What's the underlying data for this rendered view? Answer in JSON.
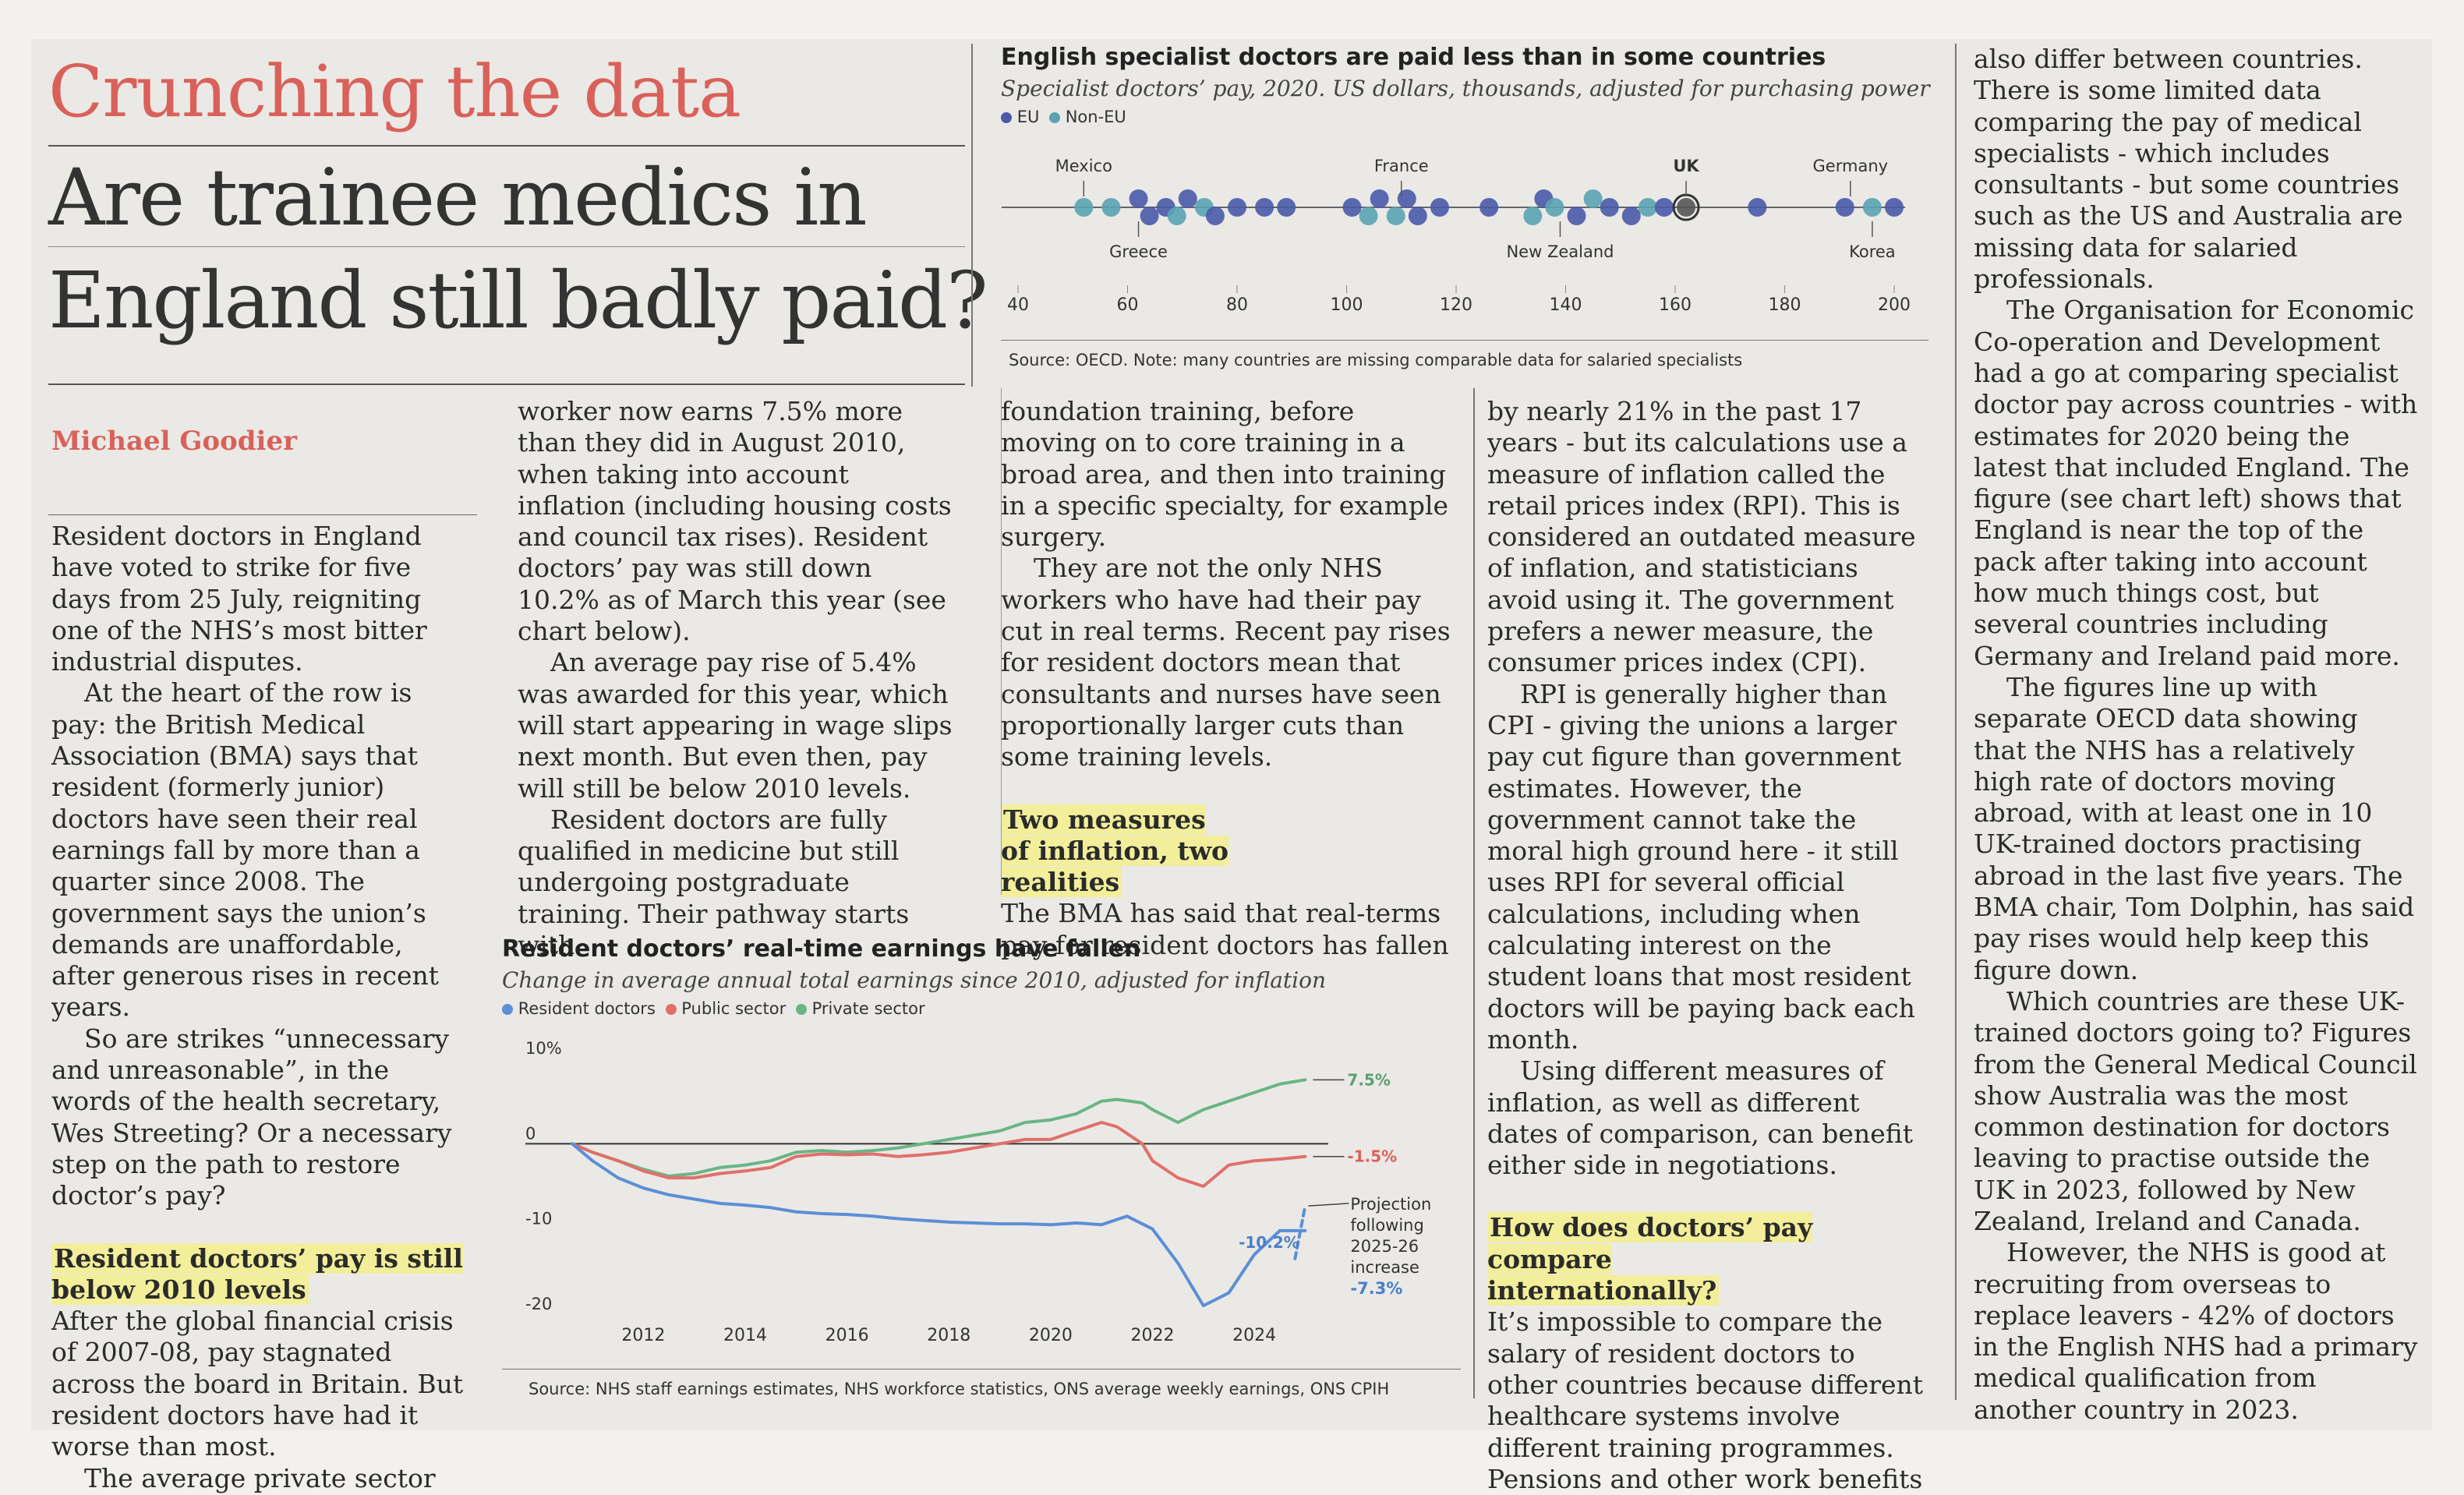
{
  "kicker": "Crunching the data",
  "headline_line1": "Are trainee medics in",
  "headline_line2": "England still badly paid?",
  "byline": "Michael Goodier",
  "columns": {
    "col1": {
      "p1": "Resident doctors in England have voted to strike for five days from 25 July, reigniting one of the NHS’s most bitter industrial disputes.",
      "p2": "At the heart of the row is pay: the British Medical Association (BMA) says that resident (formerly junior) doctors have seen their real earnings fall by more than a quarter since 2008. The government says the union’s demands are unaffordable, after generous rises in recent years.",
      "p3": "So are strikes “unnecessary and unreasonable”, in the words of the health secretary, Wes Streeting? Or a necessary step on the path to restore doctor’s pay?",
      "subhead": "Resident doctors’ pay is still below 2010 levels",
      "p4": "After the global financial crisis of 2007-08, pay stagnated across the board in Britain. But resident doctors have had it worse than most.",
      "p5": "The average private sector"
    },
    "col2": {
      "p1": "worker now earns 7.5% more than they did in August 2010, when taking into account inflation (including housing costs and council tax rises). Resident doctors’ pay was still down 10.2% as of March this year (see chart below).",
      "p2": "An average pay rise of 5.4% was awarded for this year, which will start appearing in wage slips next month. But even then, pay will still be below 2010 levels.",
      "p3": "Resident doctors are fully qualified in medicine but still undergoing postgraduate training. Their pathway starts with"
    },
    "col3": {
      "p1": "foundation training, before moving on to core training in a broad area, and then into training in a specific specialty, for example surgery.",
      "p2": "They are not the only NHS workers who have had their pay cut in real terms. Recent pay rises for resident doctors mean that consultants and nurses have seen proportionally larger cuts than some training levels.",
      "subhead": "Two measures of inflation, two realities",
      "p3": "The BMA has said that real-terms pay for resident doctors has fallen"
    },
    "col4": {
      "p1": "by nearly 21% in the past 17 years - but its calculations use a measure of inflation called the retail prices index (RPI). This is considered an outdated measure of inflation, and statisticians avoid using it. The government prefers a newer measure, the consumer prices index (CPI).",
      "p2": "RPI is generally higher than CPI - giving the unions a larger pay cut figure than government estimates. However, the government cannot take the moral high ground here - it still uses RPI for several official calculations, including when calculating interest on the student loans that most resident doctors will be paying back each month.",
      "p3": "Using different measures of inflation, as well as different dates of comparison, can benefit either side in negotiations.",
      "subhead": "How does doctors’ pay compare internationally?",
      "p4": "It’s impossible to compare the salary of resident doctors to other countries because different healthcare systems involve different training programmes. Pensions and other work benefits"
    },
    "col5": {
      "p1": "also differ between countries. There is some limited data comparing the pay of medical specialists - which includes consultants - but some countries such as the US and Australia are missing data for salaried professionals.",
      "p2": "The Organisation for Economic Co-operation and Development had a go at comparing specialist doctor pay across countries - with estimates for 2020 being the latest that included England. The figure (see chart left) shows that England is near the top of the pack after taking into account how much things cost, but several countries including Germany and Ireland paid more.",
      "p3": "The figures line up with separate OECD data showing that the NHS has a relatively high rate of doctors moving abroad, with at least one in 10 UK-trained doctors practising abroad in the last five years. The BMA chair, Tom Dolphin, has said pay rises would help keep this figure down.",
      "p4": "Which countries are these UK-trained doctors going to? Figures from the General Medical Council show Australia was the most common destination for doctors leaving to practise outside the UK in 2023, followed by New Zealand, Ireland and Canada.",
      "p5": "However, the NHS is good at recruiting from overseas to replace leavers - 42% of doctors in the English NHS had a primary medical qualification from another country in 2023."
    }
  },
  "chart_data": [
    {
      "type": "scatter",
      "title": "English specialist doctors are paid less than in some countries",
      "subtitle": "Specialist doctors’ pay, 2020. US dollars, thousands, adjusted for purchasing power",
      "legend": [
        "EU",
        "Non-EU"
      ],
      "colors": {
        "EU": "#4a5aa8",
        "Non-EU": "#5aa3b3"
      },
      "xlim": [
        40,
        200
      ],
      "xticks": [
        "40",
        "60",
        "80",
        "100",
        "120",
        "140",
        "160",
        "180",
        "200"
      ],
      "annotations": [
        {
          "label": "Mexico",
          "x": 52,
          "pos": "above"
        },
        {
          "label": "Greece",
          "x": 62,
          "pos": "below"
        },
        {
          "label": "France",
          "x": 110,
          "pos": "above"
        },
        {
          "label": "New Zealand",
          "x": 139,
          "pos": "below"
        },
        {
          "label": "UK",
          "x": 162,
          "pos": "above"
        },
        {
          "label": "Germany",
          "x": 192,
          "pos": "above"
        },
        {
          "label": "Korea",
          "x": 196,
          "pos": "below"
        }
      ],
      "points": [
        {
          "x": 52,
          "g": "Non-EU",
          "r": 0
        },
        {
          "x": 57,
          "g": "Non-EU",
          "r": 0
        },
        {
          "x": 62,
          "g": "EU",
          "r": 1
        },
        {
          "x": 64,
          "g": "EU",
          "r": -1
        },
        {
          "x": 67,
          "g": "EU",
          "r": 0
        },
        {
          "x": 69,
          "g": "Non-EU",
          "r": -1
        },
        {
          "x": 71,
          "g": "EU",
          "r": 1
        },
        {
          "x": 74,
          "g": "Non-EU",
          "r": 0
        },
        {
          "x": 76,
          "g": "EU",
          "r": -1
        },
        {
          "x": 80,
          "g": "EU",
          "r": 0
        },
        {
          "x": 85,
          "g": "EU",
          "r": 0
        },
        {
          "x": 89,
          "g": "EU",
          "r": 0
        },
        {
          "x": 101,
          "g": "EU",
          "r": 0
        },
        {
          "x": 104,
          "g": "Non-EU",
          "r": -1
        },
        {
          "x": 106,
          "g": "EU",
          "r": 1
        },
        {
          "x": 109,
          "g": "Non-EU",
          "r": -1
        },
        {
          "x": 111,
          "g": "EU",
          "r": 1
        },
        {
          "x": 113,
          "g": "EU",
          "r": -1
        },
        {
          "x": 117,
          "g": "EU",
          "r": 0
        },
        {
          "x": 126,
          "g": "EU",
          "r": 0
        },
        {
          "x": 134,
          "g": "Non-EU",
          "r": -1
        },
        {
          "x": 136,
          "g": "EU",
          "r": 1
        },
        {
          "x": 138,
          "g": "Non-EU",
          "r": 0
        },
        {
          "x": 142,
          "g": "EU",
          "r": -1
        },
        {
          "x": 145,
          "g": "Non-EU",
          "r": 1
        },
        {
          "x": 148,
          "g": "EU",
          "r": 0
        },
        {
          "x": 152,
          "g": "EU",
          "r": -1
        },
        {
          "x": 155,
          "g": "Non-EU",
          "r": 0
        },
        {
          "x": 158,
          "g": "EU",
          "r": 0
        },
        {
          "x": 162,
          "g": "UK",
          "r": 0
        },
        {
          "x": 175,
          "g": "EU",
          "r": 0
        },
        {
          "x": 191,
          "g": "EU",
          "r": 0
        },
        {
          "x": 196,
          "g": "Non-EU",
          "r": 0
        },
        {
          "x": 200,
          "g": "EU",
          "r": 0
        }
      ],
      "source": "Source: OECD. Note: many countries are missing comparable data for salaried specialists"
    },
    {
      "type": "line",
      "title": "Resident doctors’ real-time earnings have fallen",
      "subtitle": "Change in average annual total earnings since 2010, adjusted for inflation",
      "ylim": [
        -20,
        10
      ],
      "yticks": [
        {
          "v": 10,
          "l": "10%"
        },
        {
          "v": 0,
          "l": "0"
        },
        {
          "v": -10,
          "l": "-10"
        },
        {
          "v": -20,
          "l": "-20"
        }
      ],
      "xlim": [
        2010.6,
        2025.3
      ],
      "xticks": [
        "2012",
        "2014",
        "2016",
        "2018",
        "2020",
        "2022",
        "2024"
      ],
      "series": [
        {
          "name": "Private sector",
          "color": "#6ab585",
          "x": [
            2010.6,
            2011,
            2011.5,
            2012,
            2012.5,
            2013,
            2013.5,
            2014,
            2014.5,
            2015,
            2015.5,
            2016,
            2016.5,
            2017,
            2017.5,
            2018,
            2018.5,
            2019,
            2019.5,
            2020,
            2020.5,
            2021,
            2021.3,
            2021.8,
            2022,
            2022.5,
            2023,
            2023.5,
            2024,
            2024.5,
            2025
          ],
          "y": [
            0,
            -1,
            -2,
            -3,
            -3.8,
            -3.5,
            -2.8,
            -2.5,
            -2,
            -1,
            -0.8,
            -1,
            -0.8,
            -0.5,
            0,
            0.5,
            1,
            1.5,
            2.5,
            2.8,
            3.5,
            5,
            5.2,
            4.8,
            4,
            2.5,
            4,
            5,
            6,
            7,
            7.5
          ]
        },
        {
          "name": "Public sector",
          "color": "#e0706a",
          "x": [
            2010.6,
            2011,
            2011.5,
            2012,
            2012.5,
            2013,
            2013.5,
            2014,
            2014.5,
            2015,
            2015.5,
            2016,
            2016.5,
            2017,
            2017.5,
            2018,
            2018.5,
            2019,
            2019.5,
            2020,
            2020.5,
            2021,
            2021.3,
            2021.8,
            2022,
            2022.5,
            2023,
            2023.5,
            2024,
            2024.5,
            2025
          ],
          "y": [
            0,
            -1,
            -2,
            -3.2,
            -4,
            -4,
            -3.5,
            -3.2,
            -2.8,
            -1.5,
            -1.2,
            -1.3,
            -1.2,
            -1.5,
            -1.3,
            -1,
            -0.5,
            0,
            0.5,
            0.5,
            1.5,
            2.5,
            2,
            0,
            -2,
            -4,
            -5,
            -2.5,
            -2,
            -1.8,
            -1.5
          ]
        },
        {
          "name": "Resident doctors",
          "color": "#5b8fd6",
          "x": [
            2010.6,
            2011,
            2011.5,
            2012,
            2012.5,
            2013,
            2013.5,
            2014,
            2014.5,
            2015,
            2015.5,
            2016,
            2016.5,
            2017,
            2017.5,
            2018,
            2018.5,
            2019,
            2019.5,
            2020,
            2020.5,
            2021,
            2021.5,
            2022,
            2022.5,
            2023,
            2023.5,
            2024,
            2024.5,
            2025
          ],
          "y": [
            0,
            -2,
            -4,
            -5.2,
            -6,
            -6.5,
            -7,
            -7.2,
            -7.5,
            -8,
            -8.2,
            -8.3,
            -8.5,
            -8.8,
            -9,
            -9.2,
            -9.3,
            -9.4,
            -9.4,
            -9.5,
            -9.3,
            -9.5,
            -8.5,
            -10,
            -14,
            -19,
            -17.5,
            -13,
            -10.2,
            -10.2
          ]
        },
        {
          "name": "Projection following 2025-26 increase",
          "color": "#5b8fd6",
          "dashed": true,
          "x": [
            2024.8,
            2025
          ],
          "y": [
            -13.5,
            -7.3
          ]
        }
      ],
      "legend": [
        "Resident doctors",
        "Public sector",
        "Private sector"
      ],
      "labels": {
        "private": "7.5%",
        "public": "-1.5%",
        "resident": "-10.2%",
        "projection_value": "-7.3%"
      },
      "projection_text": [
        "Projection",
        "following",
        "2025-26",
        "increase"
      ],
      "source": "Source: NHS staff earnings estimates, NHS workforce statistics, ONS average weekly earnings, ONS CPIH"
    }
  ]
}
